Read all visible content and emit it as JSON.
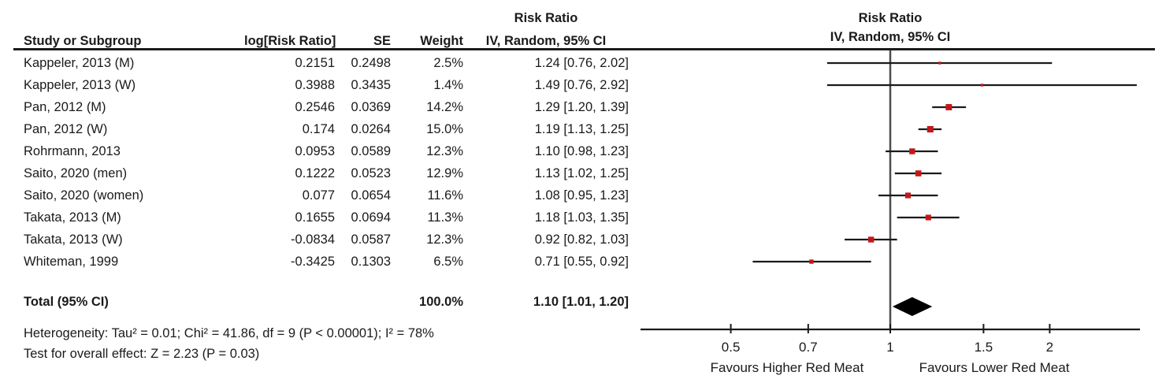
{
  "header": {
    "col_study": "Study or Subgroup",
    "col_log_rr": "log[Risk Ratio]",
    "col_se": "SE",
    "col_weight": "Weight",
    "effect_title": "Risk Ratio",
    "effect_subtitle": "IV, Random, 95% CI",
    "plot_title": "Risk Ratio",
    "plot_subtitle": "IV, Random, 95% CI"
  },
  "footnotes": {
    "heterogeneity": "Heterogeneity: Tau² = 0.01; Chi² = 41.86, df = 9 (P < 0.00001); I² = 78%",
    "overall_effect": "Test for overall effect: Z = 2.23 (P = 0.03)"
  },
  "colors": {
    "square": "#C4161C",
    "diamond": "#000000",
    "ci_line": "#1a1a1a",
    "axis_line": "#1a1a1a",
    "center_line": "#4d4d4d",
    "text": "#1a1a1a"
  },
  "chart_data": {
    "type": "forest",
    "effect_measure": "Risk Ratio",
    "model": "IV, Random, 95% CI",
    "x_scale": "log",
    "x_ticks": [
      0.5,
      0.7,
      1,
      1.5,
      2
    ],
    "x_tick_labels": [
      "0.5",
      "0.7",
      "1",
      "1.5",
      "2"
    ],
    "xlabel_left": "Favours Higher Red Meat",
    "xlabel_right": "Favours Lower Red Meat",
    "null_line": 1,
    "studies": [
      {
        "label": "Kappeler, 2013 (M)",
        "log_rr": "0.2151",
        "se": "0.2498",
        "weight": "2.5%",
        "weight_pct": 2.5,
        "rr": 1.24,
        "ci_low": 0.76,
        "ci_high": 2.02,
        "ci_text": "1.24 [0.76, 2.02]"
      },
      {
        "label": "Kappeler, 2013 (W)",
        "log_rr": "0.3988",
        "se": "0.3435",
        "weight": "1.4%",
        "weight_pct": 1.4,
        "rr": 1.49,
        "ci_low": 0.76,
        "ci_high": 2.92,
        "ci_text": "1.49 [0.76, 2.92]"
      },
      {
        "label": "Pan, 2012 (M)",
        "log_rr": "0.2546",
        "se": "0.0369",
        "weight": "14.2%",
        "weight_pct": 14.2,
        "rr": 1.29,
        "ci_low": 1.2,
        "ci_high": 1.39,
        "ci_text": "1.29 [1.20, 1.39]"
      },
      {
        "label": "Pan, 2012 (W)",
        "log_rr": "0.174",
        "se": "0.0264",
        "weight": "15.0%",
        "weight_pct": 15.0,
        "rr": 1.19,
        "ci_low": 1.13,
        "ci_high": 1.25,
        "ci_text": "1.19 [1.13, 1.25]"
      },
      {
        "label": "Rohrmann, 2013",
        "log_rr": "0.0953",
        "se": "0.0589",
        "weight": "12.3%",
        "weight_pct": 12.3,
        "rr": 1.1,
        "ci_low": 0.98,
        "ci_high": 1.23,
        "ci_text": "1.10 [0.98, 1.23]"
      },
      {
        "label": "Saito, 2020 (men)",
        "log_rr": "0.1222",
        "se": "0.0523",
        "weight": "12.9%",
        "weight_pct": 12.9,
        "rr": 1.13,
        "ci_low": 1.02,
        "ci_high": 1.25,
        "ci_text": "1.13 [1.02, 1.25]"
      },
      {
        "label": "Saito, 2020 (women)",
        "log_rr": "0.077",
        "se": "0.0654",
        "weight": "11.6%",
        "weight_pct": 11.6,
        "rr": 1.08,
        "ci_low": 0.95,
        "ci_high": 1.23,
        "ci_text": "1.08 [0.95, 1.23]"
      },
      {
        "label": "Takata, 2013 (M)",
        "log_rr": "0.1655",
        "se": "0.0694",
        "weight": "11.3%",
        "weight_pct": 11.3,
        "rr": 1.18,
        "ci_low": 1.03,
        "ci_high": 1.35,
        "ci_text": "1.18 [1.03, 1.35]"
      },
      {
        "label": "Takata, 2013 (W)",
        "log_rr": "-0.0834",
        "se": "0.0587",
        "weight": "12.3%",
        "weight_pct": 12.3,
        "rr": 0.92,
        "ci_low": 0.82,
        "ci_high": 1.03,
        "ci_text": "0.92 [0.82, 1.03]"
      },
      {
        "label": "Whiteman, 1999",
        "log_rr": "-0.3425",
        "se": "0.1303",
        "weight": "6.5%",
        "weight_pct": 6.5,
        "rr": 0.71,
        "ci_low": 0.55,
        "ci_high": 0.92,
        "ci_text": "0.71 [0.55, 0.92]"
      }
    ],
    "total": {
      "label": "Total (95% CI)",
      "weight": "100.0%",
      "weight_pct": 100.0,
      "rr": 1.1,
      "ci_low": 1.01,
      "ci_high": 1.2,
      "ci_text": "1.10 [1.01, 1.20]"
    }
  }
}
